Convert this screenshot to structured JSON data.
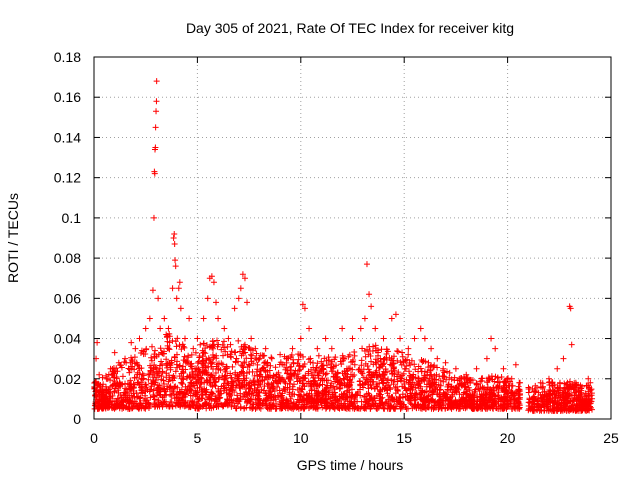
{
  "chart_data": {
    "type": "scatter",
    "title": "Day 305 of 2021, Rate Of TEC Index for receiver kitg",
    "xlabel": "GPS time / hours",
    "ylabel": "ROTI / TECUs",
    "xlim": [
      0,
      25
    ],
    "ylim": [
      0,
      0.18
    ],
    "xticks": [
      0,
      5,
      10,
      15,
      20,
      25
    ],
    "yticks": [
      0,
      0.02,
      0.04,
      0.06,
      0.08,
      0.1,
      0.12,
      0.14,
      0.16,
      0.18
    ],
    "xtick_labels": [
      "0",
      "5",
      "10",
      "15",
      "20",
      "25"
    ],
    "ytick_labels": [
      "0",
      "0.02",
      "0.04",
      "0.06",
      "0.08",
      "0.1",
      "0.12",
      "0.14",
      "0.16",
      "0.18"
    ],
    "grid": true,
    "marker": "+",
    "color": "#ff0000",
    "series": [
      {
        "name": "ROTI",
        "points": [
          [
            0.05,
            0.018
          ],
          [
            0.1,
            0.03
          ],
          [
            0.15,
            0.038
          ],
          [
            0.25,
            0.022
          ],
          [
            0.4,
            0.015
          ],
          [
            0.6,
            0.02
          ],
          [
            0.8,
            0.025
          ],
          [
            1.0,
            0.033
          ],
          [
            1.2,
            0.028
          ],
          [
            1.5,
            0.03
          ],
          [
            1.8,
            0.038
          ],
          [
            2.0,
            0.035
          ],
          [
            2.2,
            0.04
          ],
          [
            2.5,
            0.045
          ],
          [
            2.7,
            0.05
          ],
          [
            2.85,
            0.064
          ],
          [
            2.9,
            0.1
          ],
          [
            2.92,
            0.123
          ],
          [
            2.94,
            0.122
          ],
          [
            2.95,
            0.134
          ],
          [
            2.97,
            0.135
          ],
          [
            2.98,
            0.145
          ],
          [
            3.0,
            0.153
          ],
          [
            3.02,
            0.158
          ],
          [
            3.03,
            0.168
          ],
          [
            3.1,
            0.06
          ],
          [
            3.2,
            0.045
          ],
          [
            3.4,
            0.05
          ],
          [
            3.6,
            0.045
          ],
          [
            3.8,
            0.065
          ],
          [
            3.85,
            0.09
          ],
          [
            3.88,
            0.092
          ],
          [
            3.9,
            0.087
          ],
          [
            3.92,
            0.079
          ],
          [
            3.95,
            0.076
          ],
          [
            4.0,
            0.06
          ],
          [
            4.1,
            0.065
          ],
          [
            4.15,
            0.068
          ],
          [
            4.2,
            0.055
          ],
          [
            4.4,
            0.04
          ],
          [
            4.6,
            0.05
          ],
          [
            4.8,
            0.035
          ],
          [
            5.0,
            0.04
          ],
          [
            5.3,
            0.05
          ],
          [
            5.5,
            0.06
          ],
          [
            5.6,
            0.07
          ],
          [
            5.7,
            0.071
          ],
          [
            5.8,
            0.068
          ],
          [
            5.9,
            0.058
          ],
          [
            6.0,
            0.05
          ],
          [
            6.3,
            0.045
          ],
          [
            6.5,
            0.04
          ],
          [
            6.8,
            0.055
          ],
          [
            7.0,
            0.06
          ],
          [
            7.1,
            0.065
          ],
          [
            7.2,
            0.072
          ],
          [
            7.3,
            0.07
          ],
          [
            7.4,
            0.058
          ],
          [
            7.6,
            0.04
          ],
          [
            7.8,
            0.035
          ],
          [
            8.0,
            0.03
          ],
          [
            8.3,
            0.035
          ],
          [
            8.6,
            0.03
          ],
          [
            9.0,
            0.032
          ],
          [
            9.3,
            0.03
          ],
          [
            9.6,
            0.035
          ],
          [
            10.0,
            0.04
          ],
          [
            10.1,
            0.057
          ],
          [
            10.2,
            0.055
          ],
          [
            10.4,
            0.045
          ],
          [
            10.8,
            0.035
          ],
          [
            11.2,
            0.04
          ],
          [
            11.5,
            0.035
          ],
          [
            12.0,
            0.045
          ],
          [
            12.5,
            0.04
          ],
          [
            12.9,
            0.045
          ],
          [
            13.1,
            0.05
          ],
          [
            13.2,
            0.077
          ],
          [
            13.3,
            0.062
          ],
          [
            13.4,
            0.056
          ],
          [
            13.6,
            0.045
          ],
          [
            14.0,
            0.04
          ],
          [
            14.4,
            0.05
          ],
          [
            14.6,
            0.052
          ],
          [
            14.8,
            0.04
          ],
          [
            15.2,
            0.035
          ],
          [
            15.5,
            0.04
          ],
          [
            15.8,
            0.045
          ],
          [
            16.0,
            0.04
          ],
          [
            16.3,
            0.035
          ],
          [
            16.6,
            0.03
          ],
          [
            17.0,
            0.028
          ],
          [
            17.5,
            0.025
          ],
          [
            18.0,
            0.022
          ],
          [
            18.5,
            0.025
          ],
          [
            19.0,
            0.03
          ],
          [
            19.2,
            0.04
          ],
          [
            19.4,
            0.035
          ],
          [
            19.8,
            0.025
          ],
          [
            20.2,
            0.02
          ],
          [
            20.4,
            0.027
          ],
          [
            20.6,
            0.018
          ],
          [
            21.2,
            0.015
          ],
          [
            21.6,
            0.018
          ],
          [
            22.0,
            0.02
          ],
          [
            22.4,
            0.025
          ],
          [
            22.7,
            0.03
          ],
          [
            23.0,
            0.056
          ],
          [
            23.05,
            0.055
          ],
          [
            23.1,
            0.037
          ],
          [
            23.3,
            0.018
          ],
          [
            23.6,
            0.016
          ],
          [
            23.9,
            0.02
          ],
          [
            24.0,
            0.018
          ]
        ]
      }
    ],
    "envelope": {
      "x": [
        0,
        0.5,
        1,
        1.5,
        2,
        2.5,
        3,
        3.5,
        4,
        4.5,
        5,
        5.5,
        6,
        6.5,
        7,
        7.5,
        8,
        8.5,
        9,
        9.5,
        10,
        10.5,
        11,
        11.5,
        12,
        12.5,
        13,
        13.5,
        14,
        14.5,
        15,
        15.5,
        16,
        16.5,
        17,
        17.5,
        18,
        18.5,
        19,
        19.5,
        20,
        20.5,
        21,
        21.5,
        22,
        22.5,
        23,
        23.5,
        24
      ],
      "low": [
        0.005,
        0.005,
        0.005,
        0.005,
        0.005,
        0.005,
        0.006,
        0.006,
        0.006,
        0.006,
        0.005,
        0.005,
        0.006,
        0.006,
        0.005,
        0.005,
        0.005,
        0.005,
        0.005,
        0.005,
        0.005,
        0.005,
        0.005,
        0.005,
        0.005,
        0.005,
        0.005,
        0.005,
        0.005,
        0.005,
        0.005,
        0.005,
        0.005,
        0.005,
        0.005,
        0.005,
        0.005,
        0.005,
        0.005,
        0.005,
        0.005,
        0.005,
        0.004,
        0.004,
        0.004,
        0.004,
        0.004,
        0.004,
        0.004
      ],
      "high": [
        0.014,
        0.015,
        0.018,
        0.02,
        0.022,
        0.025,
        0.028,
        0.03,
        0.028,
        0.025,
        0.025,
        0.027,
        0.028,
        0.026,
        0.027,
        0.025,
        0.022,
        0.022,
        0.021,
        0.022,
        0.023,
        0.022,
        0.022,
        0.021,
        0.022,
        0.023,
        0.025,
        0.026,
        0.024,
        0.024,
        0.023,
        0.022,
        0.021,
        0.019,
        0.017,
        0.016,
        0.015,
        0.014,
        0.015,
        0.016,
        0.014,
        0.013,
        0.011,
        0.012,
        0.013,
        0.013,
        0.013,
        0.012,
        0.012
      ]
    },
    "gaps": [
      [
        20.6,
        21.0
      ]
    ],
    "x_range_data": [
      0,
      24.1
    ]
  }
}
